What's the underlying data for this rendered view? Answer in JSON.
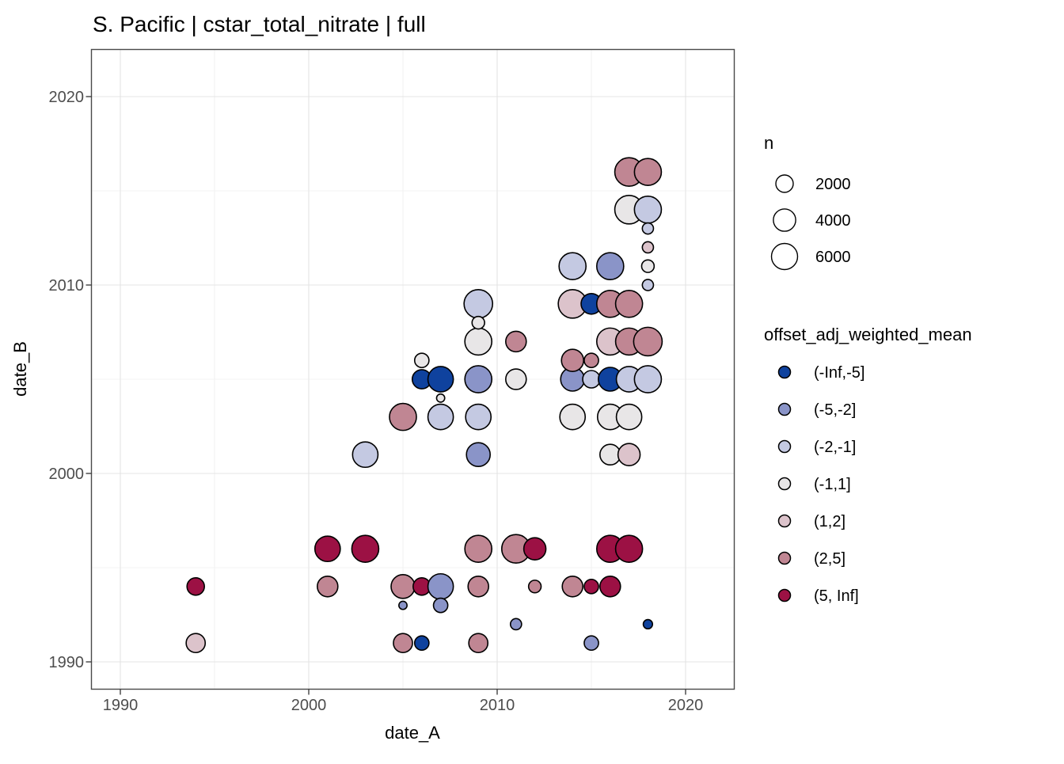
{
  "title": "S. Pacific | cstar_total_nitrate | full",
  "axes": {
    "x": {
      "label": "date_A",
      "ticks": [
        1990,
        2000,
        2010,
        2020
      ],
      "minor": [
        1995,
        2005,
        2015
      ]
    },
    "y": {
      "label": "date_B",
      "ticks": [
        1990,
        2000,
        2010,
        2020
      ],
      "minor": [
        1995,
        2005,
        2015
      ]
    }
  },
  "legend_size": {
    "title": "n",
    "entries": [
      2000,
      4000,
      6000
    ]
  },
  "legend_color": {
    "title": "offset_adj_weighted_mean",
    "entries": [
      {
        "label": "(-Inf,-5]",
        "color": "#0F429E"
      },
      {
        "label": "(-5,-2]",
        "color": "#8A94C8"
      },
      {
        "label": "(-2,-1]",
        "color": "#C4C9E2"
      },
      {
        "label": "(-1,1]",
        "color": "#E8E6E7"
      },
      {
        "label": "(1,2]",
        "color": "#DCC3CB"
      },
      {
        "label": "(2,5]",
        "color": "#C08693"
      },
      {
        "label": "(5, Inf]",
        "color": "#9C1144"
      }
    ]
  },
  "chart_data": {
    "type": "scatter",
    "title": "S. Pacific | cstar_total_nitrate | full",
    "xlabel": "date_A",
    "ylabel": "date_B",
    "xlim": [
      1988.4,
      2022.6
    ],
    "ylim": [
      1988.5,
      2022.5
    ],
    "grid": true,
    "legend_position": "right",
    "size_variable": "n",
    "color_variable": "offset_adj_weighted_mean",
    "point_outline": "#000000",
    "points": [
      {
        "x": 1994,
        "y": 1994,
        "bin": "(5, Inf]",
        "n": 2000
      },
      {
        "x": 1994,
        "y": 1991,
        "bin": "(1,2]",
        "n": 2600
      },
      {
        "x": 2001,
        "y": 1996,
        "bin": "(5, Inf]",
        "n": 5600
      },
      {
        "x": 2001,
        "y": 1994,
        "bin": "(2,5]",
        "n": 3200
      },
      {
        "x": 2003,
        "y": 2001,
        "bin": "(-2,-1]",
        "n": 5600
      },
      {
        "x": 2003,
        "y": 1996,
        "bin": "(5, Inf]",
        "n": 6500
      },
      {
        "x": 2005,
        "y": 2003,
        "bin": "(2,5]",
        "n": 6500
      },
      {
        "x": 2005,
        "y": 1994,
        "bin": "(2,5]",
        "n": 4700
      },
      {
        "x": 2005,
        "y": 1993,
        "bin": "(-5,-2]",
        "n": 100
      },
      {
        "x": 2005,
        "y": 1991,
        "bin": "(2,5]",
        "n": 2600
      },
      {
        "x": 2006,
        "y": 2006,
        "bin": "(-1,1]",
        "n": 1100
      },
      {
        "x": 2006,
        "y": 2005,
        "bin": "(-Inf,-5]",
        "n": 2600
      },
      {
        "x": 2006,
        "y": 1994,
        "bin": "(5, Inf]",
        "n": 2000
      },
      {
        "x": 2006,
        "y": 1991,
        "bin": "(-Inf,-5]",
        "n": 1100
      },
      {
        "x": 2007,
        "y": 2005,
        "bin": "(-Inf,-5]",
        "n": 5600
      },
      {
        "x": 2007,
        "y": 2004,
        "bin": "(-1,1]",
        "n": 100
      },
      {
        "x": 2007,
        "y": 2003,
        "bin": "(-2,-1]",
        "n": 5600
      },
      {
        "x": 2007,
        "y": 1994,
        "bin": "(-5,-2]",
        "n": 5600
      },
      {
        "x": 2007,
        "y": 1993,
        "bin": "(-5,-2]",
        "n": 1100
      },
      {
        "x": 2009,
        "y": 2009,
        "bin": "(-2,-1]",
        "n": 7500
      },
      {
        "x": 2009,
        "y": 2008,
        "bin": "(-1,1]",
        "n": 700
      },
      {
        "x": 2009,
        "y": 2007,
        "bin": "(-1,1]",
        "n": 6500
      },
      {
        "x": 2009,
        "y": 2005,
        "bin": "(-5,-2]",
        "n": 6500
      },
      {
        "x": 2009,
        "y": 2003,
        "bin": "(-2,-1]",
        "n": 5600
      },
      {
        "x": 2009,
        "y": 2001,
        "bin": "(-5,-2]",
        "n": 4700
      },
      {
        "x": 2009,
        "y": 1996,
        "bin": "(2,5]",
        "n": 6500
      },
      {
        "x": 2009,
        "y": 1994,
        "bin": "(2,5]",
        "n": 3200
      },
      {
        "x": 2009,
        "y": 1991,
        "bin": "(2,5]",
        "n": 2600
      },
      {
        "x": 2011,
        "y": 2007,
        "bin": "(2,5]",
        "n": 3200
      },
      {
        "x": 2011,
        "y": 2005,
        "bin": "(-1,1]",
        "n": 3200
      },
      {
        "x": 2011,
        "y": 1996,
        "bin": "(2,5]",
        "n": 7500
      },
      {
        "x": 2011,
        "y": 1992,
        "bin": "(-5,-2]",
        "n": 450
      },
      {
        "x": 2012,
        "y": 1996,
        "bin": "(5, Inf]",
        "n": 3900
      },
      {
        "x": 2012,
        "y": 1994,
        "bin": "(2,5]",
        "n": 700
      },
      {
        "x": 2014,
        "y": 2011,
        "bin": "(-2,-1]",
        "n": 6500
      },
      {
        "x": 2014,
        "y": 2009,
        "bin": "(1,2]",
        "n": 7500
      },
      {
        "x": 2014,
        "y": 2006,
        "bin": "(2,5]",
        "n": 3900
      },
      {
        "x": 2014,
        "y": 2005,
        "bin": "(-5,-2]",
        "n": 4700
      },
      {
        "x": 2014,
        "y": 2003,
        "bin": "(-1,1]",
        "n": 5600
      },
      {
        "x": 2014,
        "y": 1994,
        "bin": "(2,5]",
        "n": 3200
      },
      {
        "x": 2015,
        "y": 2009,
        "bin": "(-Inf,-5]",
        "n": 3200
      },
      {
        "x": 2015,
        "y": 2006,
        "bin": "(2,5]",
        "n": 1100
      },
      {
        "x": 2015,
        "y": 2005,
        "bin": "(-2,-1]",
        "n": 2000
      },
      {
        "x": 2015,
        "y": 1994,
        "bin": "(5, Inf]",
        "n": 1100
      },
      {
        "x": 2015,
        "y": 1991,
        "bin": "(-5,-2]",
        "n": 1100
      },
      {
        "x": 2016,
        "y": 2011,
        "bin": "(-5,-2]",
        "n": 6500
      },
      {
        "x": 2016,
        "y": 2009,
        "bin": "(2,5]",
        "n": 6500
      },
      {
        "x": 2016,
        "y": 2007,
        "bin": "(1,2]",
        "n": 6500
      },
      {
        "x": 2016,
        "y": 2005,
        "bin": "(-Inf,-5]",
        "n": 4700
      },
      {
        "x": 2016,
        "y": 2003,
        "bin": "(-1,1]",
        "n": 5600
      },
      {
        "x": 2016,
        "y": 2001,
        "bin": "(-1,1]",
        "n": 3200
      },
      {
        "x": 2016,
        "y": 1996,
        "bin": "(5, Inf]",
        "n": 6500
      },
      {
        "x": 2016,
        "y": 1994,
        "bin": "(5, Inf]",
        "n": 3200
      },
      {
        "x": 2017,
        "y": 2016,
        "bin": "(2,5]",
        "n": 7500
      },
      {
        "x": 2017,
        "y": 2014,
        "bin": "(-1,1]",
        "n": 7500
      },
      {
        "x": 2017,
        "y": 2009,
        "bin": "(2,5]",
        "n": 6500
      },
      {
        "x": 2017,
        "y": 2007,
        "bin": "(2,5]",
        "n": 6500
      },
      {
        "x": 2017,
        "y": 2005,
        "bin": "(-2,-1]",
        "n": 5600
      },
      {
        "x": 2017,
        "y": 2003,
        "bin": "(-1,1]",
        "n": 5600
      },
      {
        "x": 2017,
        "y": 2001,
        "bin": "(1,2]",
        "n": 3900
      },
      {
        "x": 2017,
        "y": 1996,
        "bin": "(5, Inf]",
        "n": 6500
      },
      {
        "x": 2018,
        "y": 2016,
        "bin": "(2,5]",
        "n": 6500
      },
      {
        "x": 2018,
        "y": 2014,
        "bin": "(-2,-1]",
        "n": 6500
      },
      {
        "x": 2018,
        "y": 2013,
        "bin": "(-2,-1]",
        "n": 450
      },
      {
        "x": 2018,
        "y": 2012,
        "bin": "(1,2]",
        "n": 450
      },
      {
        "x": 2018,
        "y": 2011,
        "bin": "(-1,1]",
        "n": 700
      },
      {
        "x": 2018,
        "y": 2010,
        "bin": "(-2,-1]",
        "n": 450
      },
      {
        "x": 2018,
        "y": 2007,
        "bin": "(2,5]",
        "n": 7500
      },
      {
        "x": 2018,
        "y": 2005,
        "bin": "(-2,-1]",
        "n": 6500
      },
      {
        "x": 2018,
        "y": 1992,
        "bin": "(-Inf,-5]",
        "n": 200
      }
    ]
  }
}
